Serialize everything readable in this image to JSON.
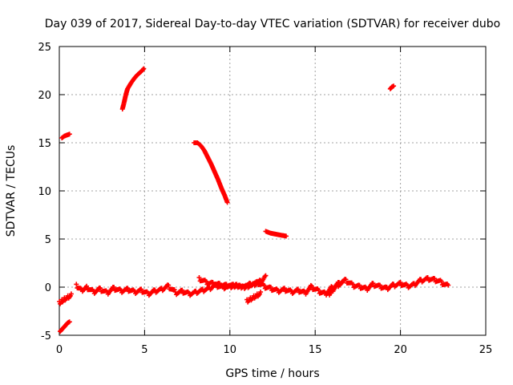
{
  "chart_data": {
    "type": "scatter",
    "title": "Day 039 of 2017, Sidereal Day-to-day VTEC variation (SDTVAR) for receiver dubo",
    "xlabel": "GPS time / hours",
    "ylabel": "SDTVAR / TECUs",
    "xlim": [
      0,
      25
    ],
    "ylim": [
      -5,
      25
    ],
    "xticks": [
      "0",
      "5",
      "10",
      "15",
      "20",
      "25"
    ],
    "yticks": [
      "-5",
      "0",
      "5",
      "10",
      "15",
      "20",
      "25"
    ],
    "grid": true,
    "marker": "plus",
    "color": "#ff0000",
    "segments": [
      {
        "x": [
          0.15,
          0.3,
          0.45,
          0.6
        ],
        "y": [
          15.5,
          15.7,
          15.8,
          15.9
        ]
      },
      {
        "x": [
          3.7,
          3.8,
          3.9,
          4.0,
          4.2,
          4.4,
          4.6,
          4.8,
          4.95
        ],
        "y": [
          18.5,
          19.2,
          20.0,
          20.6,
          21.2,
          21.7,
          22.1,
          22.4,
          22.7
        ]
      },
      {
        "x": [
          19.4,
          19.5,
          19.6
        ],
        "y": [
          20.6,
          20.8,
          20.9
        ]
      },
      {
        "x": [
          7.9,
          8.1,
          8.3,
          8.5,
          8.7,
          8.9,
          9.1,
          9.3,
          9.5,
          9.7,
          9.85
        ],
        "y": [
          15.0,
          15.0,
          14.7,
          14.2,
          13.5,
          12.8,
          12.0,
          11.2,
          10.3,
          9.5,
          8.8
        ]
      },
      {
        "x": [
          12.1,
          12.4,
          12.7,
          13.0,
          13.3
        ],
        "y": [
          5.8,
          5.6,
          5.5,
          5.4,
          5.3
        ]
      },
      {
        "x": [
          0.05,
          0.2,
          0.35,
          0.5,
          0.6
        ],
        "y": [
          -4.6,
          -4.3,
          -4.0,
          -3.7,
          -3.6
        ]
      },
      {
        "x": [
          0.0,
          0.15,
          0.3,
          0.5,
          0.7
        ],
        "y": [
          -1.5,
          -1.3,
          -1.1,
          -0.9,
          -0.7
        ]
      },
      {
        "x": [
          1.0,
          1.3,
          1.6,
          2.0,
          2.4,
          2.8,
          3.2,
          3.6,
          4.0,
          4.4,
          4.8,
          5.2,
          5.6,
          6.0,
          6.4,
          6.8,
          7.2,
          7.6,
          8.0,
          8.4,
          8.8,
          9.2,
          9.6,
          10.0,
          10.4,
          10.8,
          11.2,
          11.6,
          12.0,
          12.4,
          12.8,
          13.2,
          13.6,
          14.0,
          14.4,
          14.8,
          15.2,
          15.6,
          16.0,
          16.4,
          16.8,
          17.2,
          17.6,
          18.0,
          18.4,
          18.8,
          19.2,
          19.6,
          20.0,
          20.4,
          20.8,
          21.2,
          21.6,
          22.0,
          22.4,
          22.8
        ],
        "y": [
          0.3,
          -0.2,
          0.1,
          -0.4,
          -0.1,
          -0.5,
          0.0,
          -0.3,
          -0.1,
          -0.4,
          -0.2,
          -0.6,
          -0.3,
          -0.1,
          0.2,
          -0.5,
          -0.3,
          -0.6,
          -0.4,
          -0.2,
          0.0,
          0.3,
          0.1,
          0.2,
          0.3,
          0.1,
          0.4,
          0.6,
          0.2,
          0.0,
          -0.3,
          -0.1,
          -0.4,
          -0.2,
          -0.5,
          0.1,
          -0.3,
          -0.6,
          0.0,
          0.5,
          0.8,
          0.3,
          0.2,
          -0.1,
          0.4,
          0.2,
          0.0,
          0.3,
          0.5,
          0.2,
          0.4,
          0.8,
          1.0,
          0.9,
          0.6,
          0.2
        ]
      },
      {
        "x": [
          8.2,
          8.6,
          9.0,
          9.4,
          9.8,
          10.2,
          10.6,
          11.0,
          11.4,
          11.8,
          12.1
        ],
        "y": [
          1.0,
          0.6,
          0.5,
          0.4,
          0.3,
          0.3,
          0.2,
          0.2,
          0.4,
          0.7,
          1.2
        ]
      },
      {
        "x": [
          11.0,
          11.2,
          11.4,
          11.6,
          11.8
        ],
        "y": [
          -1.3,
          -1.1,
          -0.9,
          -0.7,
          -0.5
        ]
      },
      {
        "x": [
          15.8,
          16.0,
          16.3,
          16.6
        ],
        "y": [
          -0.6,
          -0.2,
          0.3,
          0.6
        ]
      }
    ]
  }
}
